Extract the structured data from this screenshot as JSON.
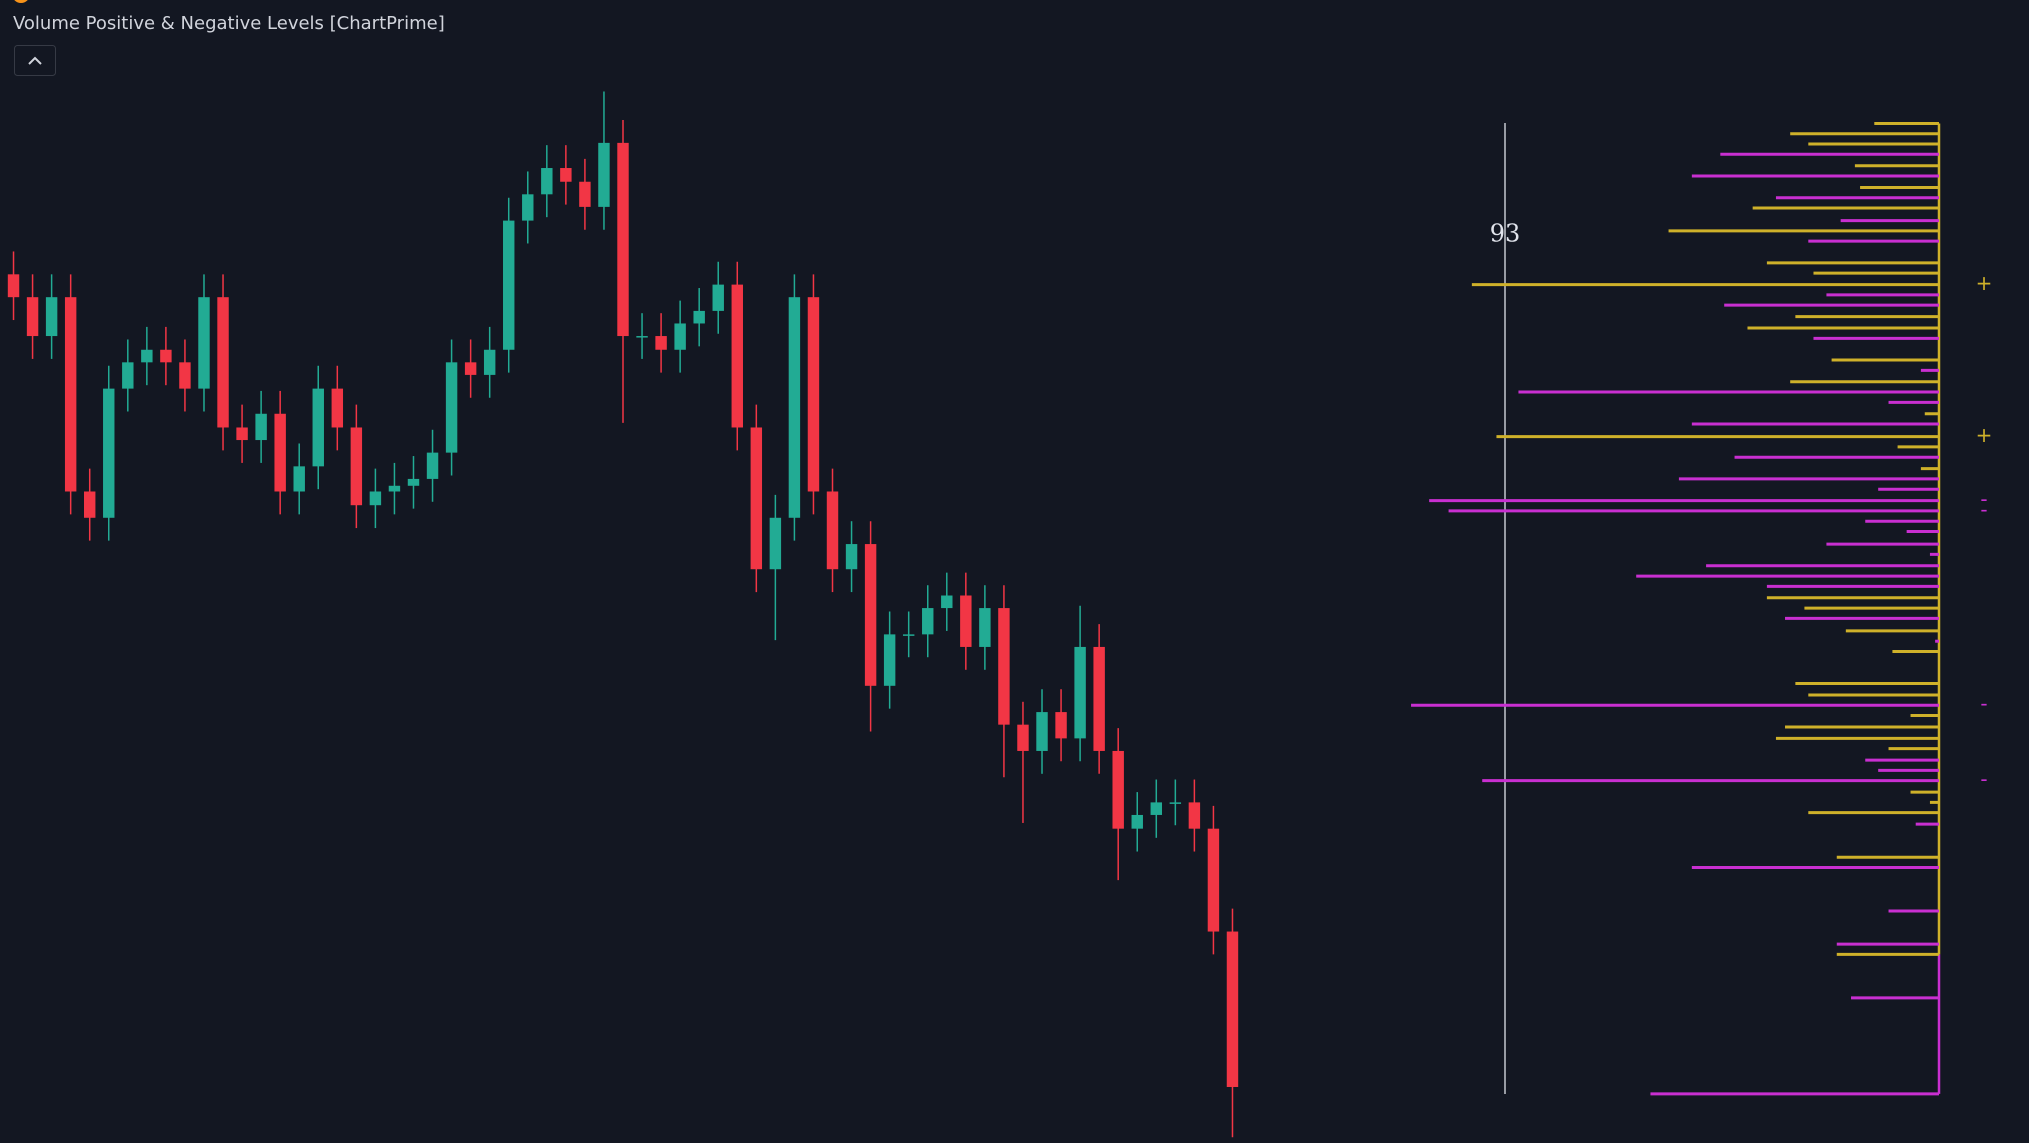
{
  "chart_data": [
    {
      "type": "candlestick",
      "title": "Volume Positive & Negative Levels [ChartPrime]",
      "up_color": "#22ab94",
      "down_color": "#f23645",
      "ylim": [
        0,
        100
      ],
      "open": [
        76.0,
        74.0,
        70.6,
        74.0,
        57.0,
        54.7,
        66.0,
        68.3,
        69.4,
        68.3,
        66.0,
        74.0,
        62.6,
        61.5,
        63.8,
        57.0,
        59.2,
        66.0,
        62.6,
        55.8,
        57.0,
        57.5,
        58.1,
        60.4,
        68.3,
        67.2,
        69.4,
        80.7,
        83.0,
        85.3,
        84.1,
        81.9,
        87.5,
        70.6,
        70.6,
        69.4,
        71.7,
        72.8,
        75.1,
        62.6,
        50.2,
        54.7,
        74.0,
        57.0,
        50.2,
        52.4,
        40.0,
        44.5,
        44.5,
        46.8,
        47.9,
        43.4,
        46.8,
        36.6,
        34.3,
        37.7,
        35.4,
        43.4,
        34.3,
        27.5,
        28.7,
        29.8,
        29.8,
        27.5,
        18.5
      ],
      "high": [
        78.0,
        76.0,
        76.0,
        76.0,
        59.0,
        68.0,
        70.3,
        71.4,
        71.4,
        70.3,
        76.0,
        76.0,
        64.6,
        65.8,
        65.8,
        61.2,
        68.0,
        68.0,
        64.6,
        59.0,
        59.5,
        60.1,
        62.4,
        70.3,
        70.3,
        71.4,
        82.7,
        85.0,
        87.3,
        87.3,
        86.1,
        92.0,
        89.5,
        72.6,
        72.6,
        73.7,
        74.8,
        77.1,
        77.1,
        64.6,
        56.7,
        76.0,
        76.0,
        59.0,
        54.4,
        54.4,
        46.5,
        46.5,
        48.8,
        49.9,
        49.9,
        48.8,
        48.8,
        38.6,
        39.7,
        39.7,
        47.0,
        45.4,
        36.3,
        30.7,
        31.8,
        31.8,
        31.8,
        29.5,
        20.5
      ],
      "low": [
        72.0,
        68.6,
        68.6,
        55.0,
        52.7,
        52.7,
        64.0,
        66.3,
        66.3,
        64.0,
        64.0,
        60.6,
        59.5,
        59.5,
        55.0,
        55.0,
        57.2,
        60.6,
        53.8,
        53.8,
        55.0,
        55.5,
        56.1,
        58.4,
        65.2,
        65.2,
        67.4,
        78.7,
        81.0,
        82.1,
        79.9,
        79.9,
        63.0,
        68.6,
        67.4,
        67.4,
        69.7,
        70.8,
        60.6,
        48.2,
        44.0,
        52.7,
        55.0,
        48.2,
        48.2,
        36.0,
        38.0,
        42.5,
        42.5,
        44.8,
        41.4,
        41.4,
        32.0,
        28.0,
        32.3,
        33.4,
        33.4,
        32.3,
        23.0,
        25.5,
        26.7,
        27.8,
        25.5,
        16.5,
        0.5
      ],
      "close": [
        74.0,
        70.6,
        74.0,
        57.0,
        54.7,
        66.0,
        68.3,
        69.4,
        68.3,
        66.0,
        74.0,
        62.6,
        61.5,
        63.8,
        57.0,
        59.2,
        66.0,
        62.6,
        55.8,
        57.0,
        57.5,
        58.1,
        60.4,
        68.3,
        67.2,
        69.4,
        80.7,
        83.0,
        85.3,
        84.1,
        81.9,
        87.5,
        70.6,
        70.6,
        69.4,
        71.7,
        72.8,
        75.1,
        62.6,
        50.2,
        54.7,
        74.0,
        57.0,
        50.2,
        52.4,
        40.0,
        44.5,
        44.5,
        46.8,
        47.9,
        43.4,
        46.8,
        36.6,
        34.3,
        37.7,
        35.4,
        43.4,
        34.3,
        27.5,
        28.7,
        29.8,
        29.8,
        27.5,
        18.5,
        4.9
      ]
    },
    {
      "type": "bar",
      "orientation": "horizontal",
      "ylim": [
        0,
        100
      ],
      "annotation": "93",
      "levels": [
        89.2,
        88.3,
        87.4,
        86.5,
        85.5,
        84.6,
        83.6,
        82.7,
        81.8,
        80.7,
        79.8,
        78.9,
        77.0,
        76.1,
        75.1,
        74.2,
        73.3,
        72.3,
        71.3,
        70.4,
        68.5,
        67.6,
        66.6,
        65.7,
        64.8,
        63.8,
        62.9,
        61.8,
        60.9,
        60.0,
        59.0,
        58.1,
        57.2,
        56.2,
        55.3,
        54.4,
        53.5,
        52.4,
        51.5,
        50.5,
        49.6,
        48.7,
        47.7,
        46.8,
        45.9,
        44.8,
        43.9,
        43.0,
        40.2,
        39.2,
        38.3,
        37.4,
        36.4,
        35.4,
        34.5,
        33.5,
        32.6,
        31.7,
        30.7,
        29.8,
        28.9,
        27.9,
        25.0,
        24.1,
        20.3,
        17.4,
        16.5,
        12.7,
        4.3
      ],
      "values": [
        50,
        115,
        101,
        169,
        65,
        191,
        61,
        126,
        144,
        76,
        209,
        101,
        133,
        97,
        361,
        87,
        166,
        111,
        148,
        97,
        83,
        14,
        115,
        325,
        39,
        11,
        191,
        342,
        32,
        158,
        14,
        201,
        47,
        394,
        379,
        57,
        25,
        87,
        7,
        180,
        234,
        133,
        133,
        104,
        119,
        72,
        3,
        36,
        111,
        101,
        408,
        22,
        119,
        126,
        39,
        57,
        47,
        353,
        22,
        7,
        101,
        18,
        79,
        191,
        39,
        79,
        79,
        68,
        223
      ],
      "colors": [
        "#cfb12a",
        "#cfb12a",
        "#cfb12a",
        "#c92fd1",
        "#cfb12a",
        "#c92fd1",
        "#cfb12a",
        "#c92fd1",
        "#cfb12a",
        "#c92fd1",
        "#cfb12a",
        "#c92fd1",
        "#cfb12a",
        "#cfb12a",
        "#cfb12a",
        "#c92fd1",
        "#c92fd1",
        "#cfb12a",
        "#cfb12a",
        "#c92fd1",
        "#cfb12a",
        "#c92fd1",
        "#cfb12a",
        "#c92fd1",
        "#c92fd1",
        "#cfb12a",
        "#c92fd1",
        "#cfb12a",
        "#cfb12a",
        "#c92fd1",
        "#cfb12a",
        "#c92fd1",
        "#c92fd1",
        "#c92fd1",
        "#c92fd1",
        "#c92fd1",
        "#c92fd1",
        "#c92fd1",
        "#c92fd1",
        "#c92fd1",
        "#c92fd1",
        "#c92fd1",
        "#cfb12a",
        "#cfb12a",
        "#c92fd1",
        "#cfb12a",
        "#c92fd1",
        "#cfb12a",
        "#cfb12a",
        "#cfb12a",
        "#c92fd1",
        "#cfb12a",
        "#cfb12a",
        "#cfb12a",
        "#cfb12a",
        "#c92fd1",
        "#c92fd1",
        "#c92fd1",
        "#cfb12a",
        "#cfb12a",
        "#cfb12a",
        "#c92fd1",
        "#cfb12a",
        "#c92fd1",
        "#c92fd1",
        "#c92fd1",
        "#cfb12a",
        "#c92fd1",
        "#c92fd1"
      ],
      "markers": [
        {
          "label": "+",
          "level": 75.1,
          "color": "#cfb12a"
        },
        {
          "label": "+",
          "level": 61.8,
          "color": "#cfb12a"
        },
        {
          "label": "-",
          "level": 56.2,
          "color": "#c92fd1"
        },
        {
          "label": "-",
          "level": 55.3,
          "color": "#c92fd1"
        },
        {
          "label": "-",
          "level": 38.3,
          "color": "#c92fd1"
        },
        {
          "label": "-",
          "level": 31.7,
          "color": "#c92fd1"
        }
      ]
    }
  ]
}
